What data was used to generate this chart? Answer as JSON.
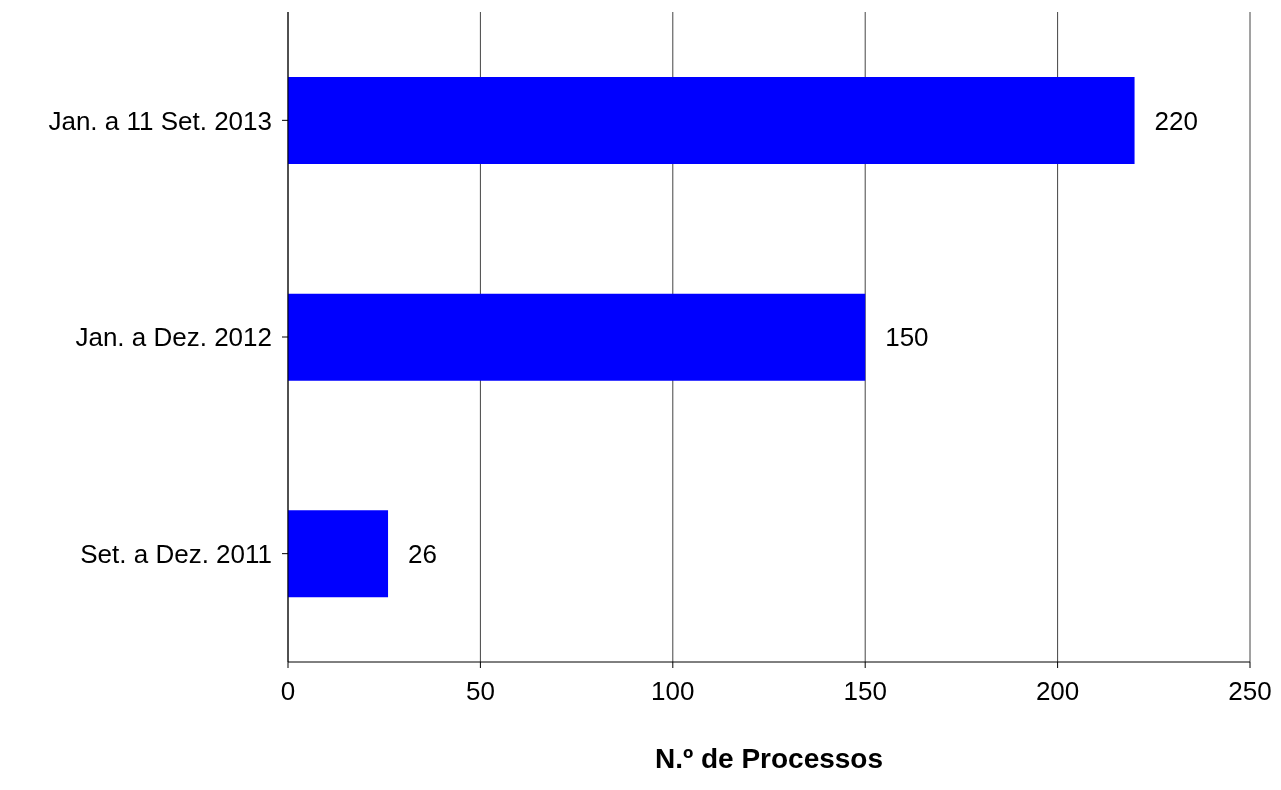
{
  "chart_data": {
    "type": "bar",
    "orientation": "horizontal",
    "xlabel": "N.º de Processos",
    "categories": [
      "Jan. a 11 Set. 2013",
      "Jan. a Dez. 2012",
      "Set. a Dez. 2011"
    ],
    "values": [
      220,
      150,
      26
    ],
    "color": "#0000ff",
    "xlim": [
      0,
      250
    ],
    "xticks": [
      0,
      50,
      100,
      150,
      200,
      250
    ],
    "grid": "x",
    "data_labels": true
  }
}
